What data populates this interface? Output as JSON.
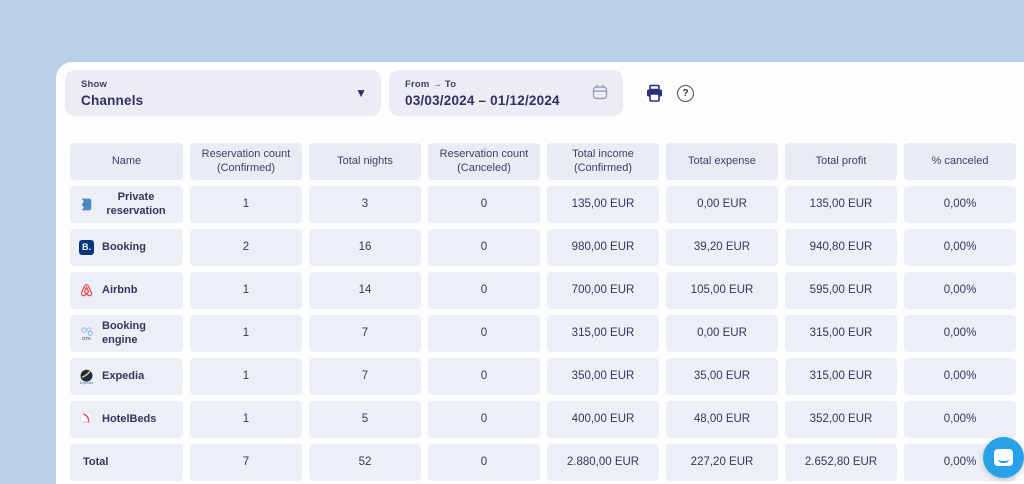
{
  "controls": {
    "show": {
      "label": "Show",
      "value": "Channels"
    },
    "date_range": {
      "label": "From → To",
      "value": "03/03/2024 – 01/12/2024"
    },
    "icons": {
      "caret": "chevron-down",
      "calendar": "calendar",
      "print": "printer",
      "help": "question-mark"
    }
  },
  "table": {
    "columns": [
      "Name",
      "Reservation count (Confirmed)",
      "Total nights",
      "Reservation count (Canceled)",
      "Total income (Confirmed)",
      "Total expense",
      "Total profit",
      "% canceled"
    ],
    "rows": [
      {
        "name": "Private reservation",
        "icon": "private-reservation",
        "values": [
          "1",
          "3",
          "0",
          "135,00 EUR",
          "0,00 EUR",
          "135,00 EUR",
          "0,00%"
        ]
      },
      {
        "name": "Booking",
        "icon": "booking",
        "values": [
          "2",
          "16",
          "0",
          "980,00 EUR",
          "39,20 EUR",
          "940,80 EUR",
          "0,00%"
        ]
      },
      {
        "name": "Airbnb",
        "icon": "airbnb",
        "values": [
          "1",
          "14",
          "0",
          "700,00 EUR",
          "105,00 EUR",
          "595,00 EUR",
          "0,00%"
        ]
      },
      {
        "name": "Booking engine",
        "icon": "booking-engine",
        "values": [
          "1",
          "7",
          "0",
          "315,00 EUR",
          "0,00 EUR",
          "315,00 EUR",
          "0,00%"
        ]
      },
      {
        "name": "Expedia",
        "icon": "expedia",
        "values": [
          "1",
          "7",
          "0",
          "350,00 EUR",
          "35,00 EUR",
          "315,00 EUR",
          "0,00%"
        ]
      },
      {
        "name": "HotelBeds",
        "icon": "hotelbeds",
        "values": [
          "1",
          "5",
          "0",
          "400,00 EUR",
          "48,00 EUR",
          "352,00 EUR",
          "0,00%"
        ]
      },
      {
        "name": "Total",
        "icon": null,
        "values": [
          "7",
          "52",
          "0",
          "2.880,00 EUR",
          "227,20 EUR",
          "2.652,80 EUR",
          "0,00%"
        ]
      }
    ]
  },
  "colors": {
    "page_bg": "#b9cfe6",
    "panel_bg": "#fdfdfe",
    "cell_bg": "#edeff7",
    "text": "#34365e",
    "print_icon": "#2c2e7b",
    "chat_bubble": "#27a2e9",
    "booking_blue": "#04357f",
    "airbnb_red": "#e8474b"
  },
  "chat": {
    "icon": "chat-bubble"
  }
}
